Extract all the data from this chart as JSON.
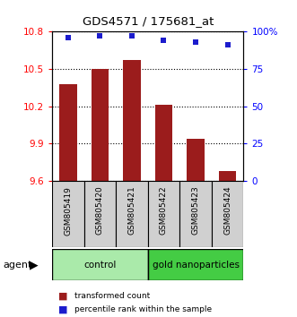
{
  "title": "GDS4571 / 175681_at",
  "samples": [
    "GSM805419",
    "GSM805420",
    "GSM805421",
    "GSM805422",
    "GSM805423",
    "GSM805424"
  ],
  "bar_values": [
    10.38,
    10.5,
    10.57,
    10.21,
    9.94,
    9.68
  ],
  "percentile_values": [
    96,
    97,
    97,
    94,
    93,
    91
  ],
  "ylim_left": [
    9.6,
    10.8
  ],
  "ylim_right": [
    0,
    100
  ],
  "yticks_left": [
    9.6,
    9.9,
    10.2,
    10.5,
    10.8
  ],
  "yticks_right": [
    0,
    25,
    50,
    75,
    100
  ],
  "ytick_labels_left": [
    "9.6",
    "9.9",
    "10.2",
    "10.5",
    "10.8"
  ],
  "ytick_labels_right": [
    "0",
    "25",
    "50",
    "75",
    "100%"
  ],
  "bar_color": "#9B1C1C",
  "percentile_color": "#1C1CCD",
  "bar_width": 0.55,
  "group_colors_control": "#AAEAAA",
  "group_colors_gold": "#44CC44",
  "legend_items": [
    {
      "label": "transformed count",
      "color": "#9B1C1C"
    },
    {
      "label": "percentile rank within the sample",
      "color": "#1C1CCD"
    }
  ]
}
